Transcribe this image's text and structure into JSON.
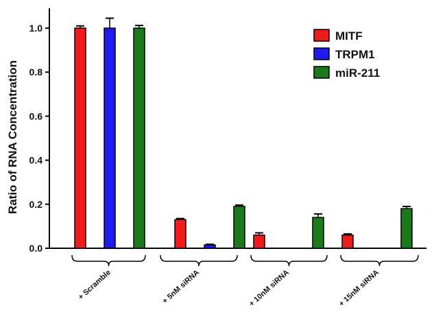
{
  "chart_data": {
    "type": "bar",
    "categories": [
      "+ Scramble",
      "+ 5nM siRNA",
      "+ 10nM siRNA",
      "+ 15nM siRNA"
    ],
    "series": [
      {
        "name": "MITF",
        "color": "#ee1c1c",
        "values": [
          1.0,
          0.13,
          0.06,
          0.06
        ],
        "errors": [
          0.01,
          0.005,
          0.01,
          0.005
        ]
      },
      {
        "name": "TRPM1",
        "color": "#1c1cee",
        "values": [
          1.0,
          0.015,
          null,
          null
        ],
        "errors": [
          0.045,
          0.003,
          null,
          null
        ]
      },
      {
        "name": "miR-211",
        "color": "#1c7a1c",
        "values": [
          1.0,
          0.19,
          0.14,
          0.18
        ],
        "errors": [
          0.012,
          0.006,
          0.016,
          0.01
        ]
      }
    ],
    "ylabel": "Ratio of RNA Concentration",
    "ylim": [
      0,
      1.1
    ],
    "yticks": [
      "0.0",
      "0.2",
      "0.4",
      "0.6",
      "0.8",
      "1.0"
    ],
    "legend_position": "top-right",
    "grid": false
  }
}
